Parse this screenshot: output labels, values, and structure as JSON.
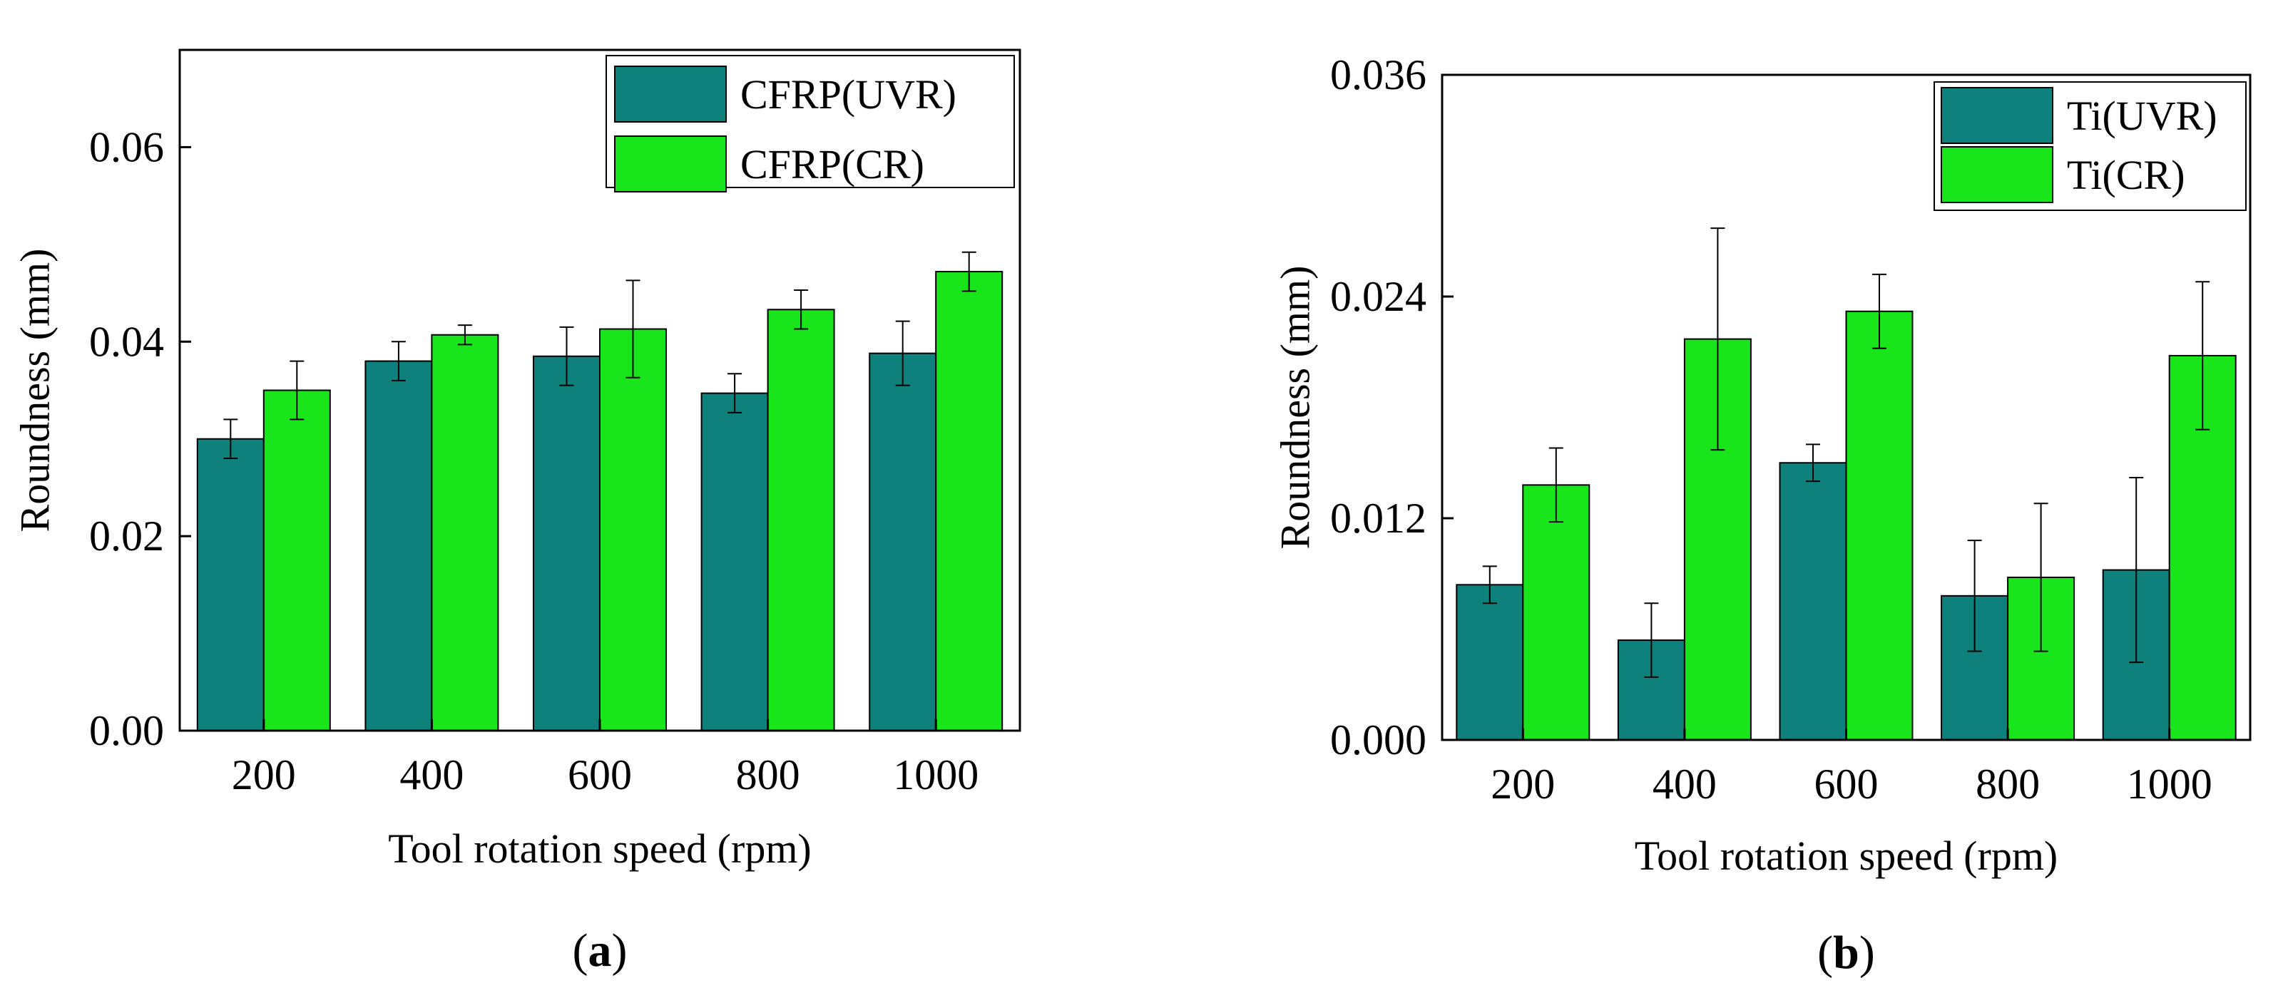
{
  "colors": {
    "uvr": "#0f817c",
    "cr": "#19e51b",
    "axis": "#000000",
    "error_bar": "#000000"
  },
  "chart_data": [
    {
      "type": "bar",
      "panel_label": "a",
      "categories": [
        "200",
        "400",
        "600",
        "800",
        "1000"
      ],
      "series": [
        {
          "name": "CFRP(UVR)",
          "values": [
            0.03,
            0.038,
            0.0385,
            0.0347,
            0.0388
          ],
          "errors": [
            0.002,
            0.002,
            0.003,
            0.002,
            0.0033
          ]
        },
        {
          "name": "CFRP(CR)",
          "values": [
            0.035,
            0.0407,
            0.0413,
            0.0433,
            0.0472
          ],
          "errors": [
            0.003,
            0.001,
            0.005,
            0.002,
            0.002
          ]
        }
      ],
      "xlabel": "Tool rotation speed (rpm)",
      "ylabel": "Roundness (mm)",
      "ylim": [
        0,
        0.07
      ],
      "yticks": [
        "0.00",
        "0.02",
        "0.04",
        "0.06"
      ],
      "ytick_values": [
        0,
        0.02,
        0.04,
        0.06
      ],
      "legend_position": "top-right",
      "grid": false
    },
    {
      "type": "bar",
      "panel_label": "b",
      "categories": [
        "200",
        "400",
        "600",
        "800",
        "1000"
      ],
      "series": [
        {
          "name": "Ti(UVR)",
          "values": [
            0.0084,
            0.0054,
            0.015,
            0.0078,
            0.0092
          ],
          "errors": [
            0.001,
            0.002,
            0.001,
            0.003,
            0.005
          ]
        },
        {
          "name": "Ti(CR)",
          "values": [
            0.0138,
            0.0217,
            0.0232,
            0.0088,
            0.0208
          ],
          "errors": [
            0.002,
            0.006,
            0.002,
            0.004,
            0.004
          ]
        }
      ],
      "xlabel": "Tool rotation speed (rpm)",
      "ylabel": "Roundness (mm)",
      "ylim": [
        0,
        0.036
      ],
      "yticks": [
        "0.000",
        "0.012",
        "0.024",
        "0.036"
      ],
      "ytick_values": [
        0,
        0.012,
        0.024,
        0.036
      ],
      "legend_position": "top-right",
      "grid": false
    }
  ]
}
